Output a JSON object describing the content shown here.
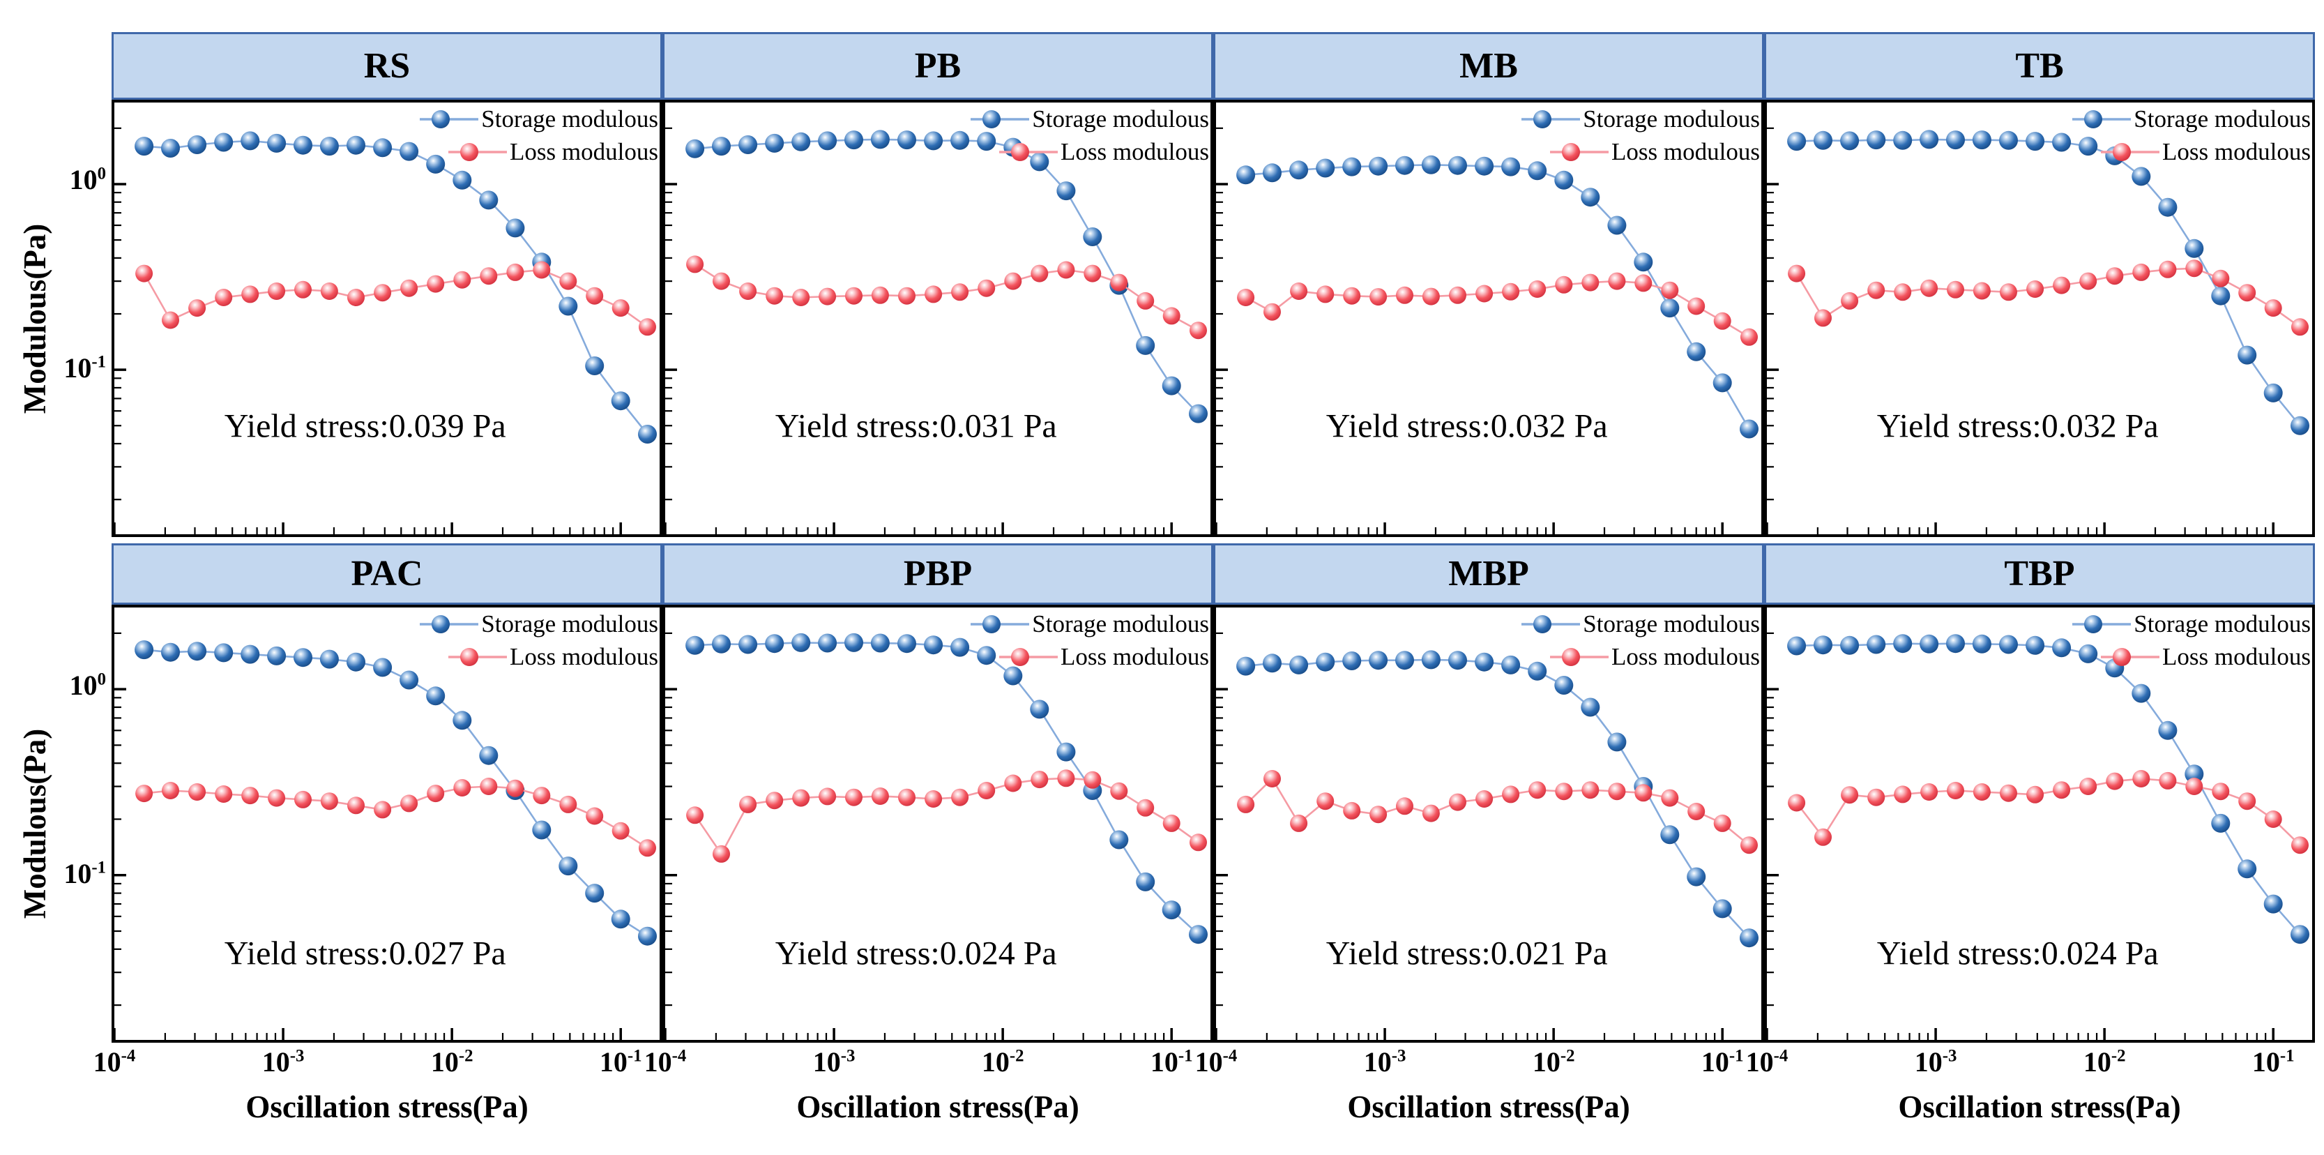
{
  "figure": {
    "x_axis_label": "Oscillation stress(Pa)",
    "y_axis_label": "Modulous(Pa)",
    "x_tick_labels": [
      "10^-4",
      "10^-3",
      "10^-2",
      "10^-1"
    ],
    "x_tick_exponents": [
      -4,
      -3,
      -2,
      -1
    ],
    "y_tick_labels": [
      "10^0",
      "10^-1"
    ],
    "y_tick_exponents": [
      0,
      -1
    ],
    "legend": [
      {
        "label": "Storage modulous",
        "series": "storage"
      },
      {
        "label": "Loss modulous",
        "series": "loss"
      }
    ],
    "colors": {
      "header_fill": "#c3d7ef",
      "header_border": "#3f68aa",
      "storage_marker": "#2f6eb5",
      "storage_marker_light": "#a9c8e9",
      "storage_marker_dark": "#174a86",
      "storage_line": "#85abdc",
      "loss_marker": "#f4545e",
      "loss_marker_light": "#fbc4c9",
      "loss_marker_dark": "#d12f3d",
      "loss_line": "#f59ba4",
      "axis": "#000000",
      "background": "#ffffff"
    }
  },
  "chart_data": {
    "type": "line",
    "x_scale": "log",
    "y_scale": "log",
    "grid": false,
    "legend_position": "top-right",
    "xlabel": "Oscillation stress(Pa)",
    "ylabel": "Modulous(Pa)",
    "xlim": [
      0.0001,
      0.17
    ],
    "ylim": [
      0.013,
      2.75
    ],
    "x": [
      0.00015,
      0.000215,
      0.000309,
      0.000444,
      0.000637,
      0.000914,
      0.00131,
      0.00188,
      0.0027,
      0.00388,
      0.00557,
      0.008,
      0.0115,
      0.0165,
      0.0237,
      0.034,
      0.0488,
      0.07,
      0.1,
      0.144
    ],
    "panels": [
      {
        "title": "RS",
        "yield_stress_pa": 0.039,
        "yield_label": "Yield stress:0.039 Pa",
        "series": [
          {
            "name": "Storage modulous",
            "values": [
              1.6,
              1.56,
              1.63,
              1.68,
              1.71,
              1.66,
              1.62,
              1.6,
              1.62,
              1.57,
              1.5,
              1.28,
              1.05,
              0.82,
              0.58,
              0.38,
              0.22,
              0.105,
              0.068,
              0.045
            ]
          },
          {
            "name": "Loss modulous",
            "values": [
              0.33,
              0.185,
              0.215,
              0.245,
              0.255,
              0.265,
              0.27,
              0.265,
              0.245,
              0.26,
              0.275,
              0.29,
              0.305,
              0.32,
              0.335,
              0.345,
              0.3,
              0.25,
              0.215,
              0.17
            ]
          }
        ]
      },
      {
        "title": "PB",
        "yield_stress_pa": 0.031,
        "yield_label": "Yield stress:0.031 Pa",
        "series": [
          {
            "name": "Storage modulous",
            "values": [
              1.55,
              1.6,
              1.63,
              1.66,
              1.69,
              1.71,
              1.73,
              1.74,
              1.73,
              1.71,
              1.72,
              1.7,
              1.58,
              1.32,
              0.92,
              0.52,
              0.285,
              0.135,
              0.082,
              0.058
            ]
          },
          {
            "name": "Loss modulous",
            "values": [
              0.37,
              0.3,
              0.265,
              0.25,
              0.245,
              0.248,
              0.25,
              0.252,
              0.25,
              0.255,
              0.262,
              0.275,
              0.3,
              0.33,
              0.345,
              0.33,
              0.295,
              0.235,
              0.195,
              0.163
            ]
          }
        ]
      },
      {
        "title": "MB",
        "yield_stress_pa": 0.032,
        "yield_label": "Yield stress:0.032 Pa",
        "series": [
          {
            "name": "Storage modulous",
            "values": [
              1.12,
              1.15,
              1.19,
              1.22,
              1.24,
              1.25,
              1.26,
              1.27,
              1.26,
              1.25,
              1.24,
              1.18,
              1.05,
              0.85,
              0.6,
              0.38,
              0.215,
              0.125,
              0.085,
              0.048
            ]
          },
          {
            "name": "Loss modulous",
            "values": [
              0.245,
              0.205,
              0.265,
              0.255,
              0.25,
              0.247,
              0.252,
              0.248,
              0.252,
              0.257,
              0.263,
              0.272,
              0.287,
              0.295,
              0.3,
              0.293,
              0.268,
              0.22,
              0.183,
              0.15
            ]
          }
        ]
      },
      {
        "title": "TB",
        "yield_stress_pa": 0.032,
        "yield_label": "Yield stress:0.032 Pa",
        "series": [
          {
            "name": "Storage modulous",
            "values": [
              1.7,
              1.72,
              1.71,
              1.73,
              1.72,
              1.74,
              1.73,
              1.73,
              1.72,
              1.7,
              1.68,
              1.6,
              1.42,
              1.1,
              0.75,
              0.45,
              0.25,
              0.12,
              0.075,
              0.05
            ]
          },
          {
            "name": "Loss modulous",
            "values": [
              0.33,
              0.19,
              0.235,
              0.268,
              0.262,
              0.275,
              0.27,
              0.266,
              0.262,
              0.272,
              0.285,
              0.3,
              0.32,
              0.335,
              0.347,
              0.352,
              0.31,
              0.26,
              0.215,
              0.17
            ]
          }
        ]
      },
      {
        "title": "PAC",
        "yield_stress_pa": 0.027,
        "yield_label": "Yield stress:0.027 Pa",
        "series": [
          {
            "name": "Storage modulous",
            "values": [
              1.63,
              1.58,
              1.6,
              1.57,
              1.54,
              1.51,
              1.48,
              1.45,
              1.4,
              1.31,
              1.12,
              0.92,
              0.68,
              0.44,
              0.285,
              0.175,
              0.112,
              0.08,
              0.058,
              0.047
            ]
          },
          {
            "name": "Loss modulous",
            "values": [
              0.275,
              0.285,
              0.28,
              0.273,
              0.268,
              0.26,
              0.255,
              0.25,
              0.237,
              0.225,
              0.243,
              0.275,
              0.295,
              0.3,
              0.293,
              0.268,
              0.24,
              0.208,
              0.173,
              0.14
            ]
          }
        ]
      },
      {
        "title": "PBP",
        "yield_stress_pa": 0.024,
        "yield_label": "Yield stress:0.024 Pa",
        "series": [
          {
            "name": "Storage modulous",
            "values": [
              1.72,
              1.75,
              1.74,
              1.76,
              1.78,
              1.77,
              1.78,
              1.77,
              1.76,
              1.73,
              1.68,
              1.52,
              1.18,
              0.78,
              0.46,
              0.285,
              0.155,
              0.092,
              0.065,
              0.048
            ]
          },
          {
            "name": "Loss modulous",
            "values": [
              0.21,
              0.13,
              0.24,
              0.252,
              0.26,
              0.265,
              0.262,
              0.266,
              0.262,
              0.257,
              0.262,
              0.285,
              0.312,
              0.327,
              0.332,
              0.325,
              0.283,
              0.23,
              0.19,
              0.15
            ]
          }
        ]
      },
      {
        "title": "MBP",
        "yield_stress_pa": 0.021,
        "yield_label": "Yield stress:0.021 Pa",
        "series": [
          {
            "name": "Storage modulous",
            "values": [
              1.33,
              1.38,
              1.35,
              1.4,
              1.42,
              1.43,
              1.43,
              1.44,
              1.43,
              1.4,
              1.35,
              1.25,
              1.05,
              0.8,
              0.52,
              0.3,
              0.165,
              0.098,
              0.066,
              0.046
            ]
          },
          {
            "name": "Loss modulous",
            "values": [
              0.24,
              0.33,
              0.19,
              0.25,
              0.222,
              0.212,
              0.235,
              0.215,
              0.247,
              0.257,
              0.272,
              0.287,
              0.282,
              0.287,
              0.282,
              0.277,
              0.26,
              0.22,
              0.19,
              0.145
            ]
          }
        ]
      },
      {
        "title": "TBP",
        "yield_stress_pa": 0.024,
        "yield_label": "Yield stress:0.024 Pa",
        "series": [
          {
            "name": "Storage modulous",
            "values": [
              1.71,
              1.73,
              1.72,
              1.74,
              1.76,
              1.75,
              1.76,
              1.75,
              1.74,
              1.72,
              1.67,
              1.55,
              1.3,
              0.95,
              0.6,
              0.35,
              0.19,
              0.108,
              0.07,
              0.048
            ]
          },
          {
            "name": "Loss modulous",
            "values": [
              0.245,
              0.16,
              0.27,
              0.262,
              0.272,
              0.28,
              0.285,
              0.28,
              0.276,
              0.271,
              0.287,
              0.3,
              0.32,
              0.33,
              0.322,
              0.3,
              0.282,
              0.25,
              0.2,
              0.145
            ]
          }
        ]
      }
    ]
  }
}
